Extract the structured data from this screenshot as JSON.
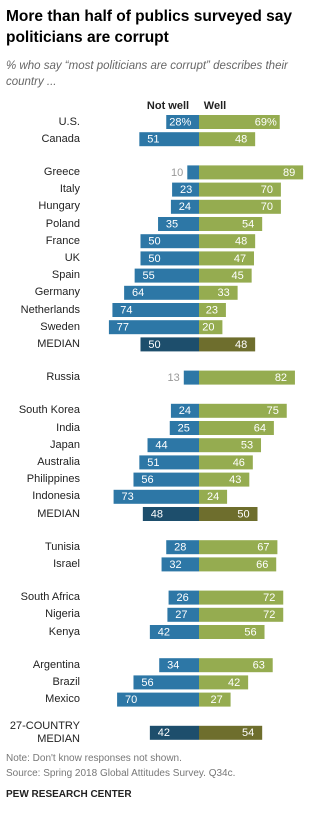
{
  "chart_data": {
    "type": "diverging-bar",
    "title": "More than half of publics surveyed say politicians are corrupt",
    "subtitle": "% who say “most politicians are corrupt” describes their country ...",
    "series": [
      {
        "name": "Not well",
        "color": "#2d77a6",
        "median_color": "#1d4e6c"
      },
      {
        "name": "Well",
        "color": "#95ac50",
        "median_color": "#6e6e2d"
      }
    ],
    "groups": [
      {
        "categories": [
          "U.S.",
          "Canada"
        ],
        "values": [
          [
            28,
            51
          ],
          [
            69,
            48
          ]
        ],
        "value_labels": [
          [
            "28%",
            "51"
          ],
          [
            "69%",
            "48"
          ]
        ]
      },
      {
        "categories": [
          "Greece",
          "Italy",
          "Hungary",
          "Poland",
          "France",
          "UK",
          "Spain",
          "Germany",
          "Netherlands",
          "Sweden"
        ],
        "values": [
          [
            10,
            23,
            24,
            35,
            50,
            50,
            55,
            64,
            74,
            77
          ],
          [
            89,
            70,
            70,
            54,
            48,
            47,
            45,
            33,
            23,
            20
          ]
        ],
        "median": {
          "label": "MEDIAN",
          "values": [
            50,
            48
          ]
        }
      },
      {
        "categories": [
          "Russia"
        ],
        "values": [
          [
            13
          ],
          [
            82
          ]
        ]
      },
      {
        "categories": [
          "South Korea",
          "India",
          "Japan",
          "Australia",
          "Philippines",
          "Indonesia"
        ],
        "values": [
          [
            24,
            25,
            44,
            51,
            56,
            73
          ],
          [
            75,
            64,
            53,
            46,
            43,
            24
          ]
        ],
        "median": {
          "label": "MEDIAN",
          "values": [
            48,
            50
          ]
        }
      },
      {
        "categories": [
          "Tunisia",
          "Israel"
        ],
        "values": [
          [
            28,
            32
          ],
          [
            67,
            66
          ]
        ]
      },
      {
        "categories": [
          "South Africa",
          "Nigeria",
          "Kenya"
        ],
        "values": [
          [
            26,
            27,
            42
          ],
          [
            72,
            72,
            56
          ]
        ]
      },
      {
        "categories": [
          "Argentina",
          "Brazil",
          "Mexico"
        ],
        "values": [
          [
            34,
            56,
            70
          ],
          [
            63,
            42,
            27
          ]
        ]
      },
      {
        "categories": [],
        "values": [
          [],
          []
        ],
        "median": {
          "label": "27-COUNTRY MEDIAN",
          "values": [
            42,
            54
          ]
        }
      }
    ],
    "note": "Note: Don't know responses not shown.",
    "source": "Source: Spring 2018 Global Attitudes Survey. Q34c.",
    "credit": "PEW RESEARCH CENTER"
  }
}
